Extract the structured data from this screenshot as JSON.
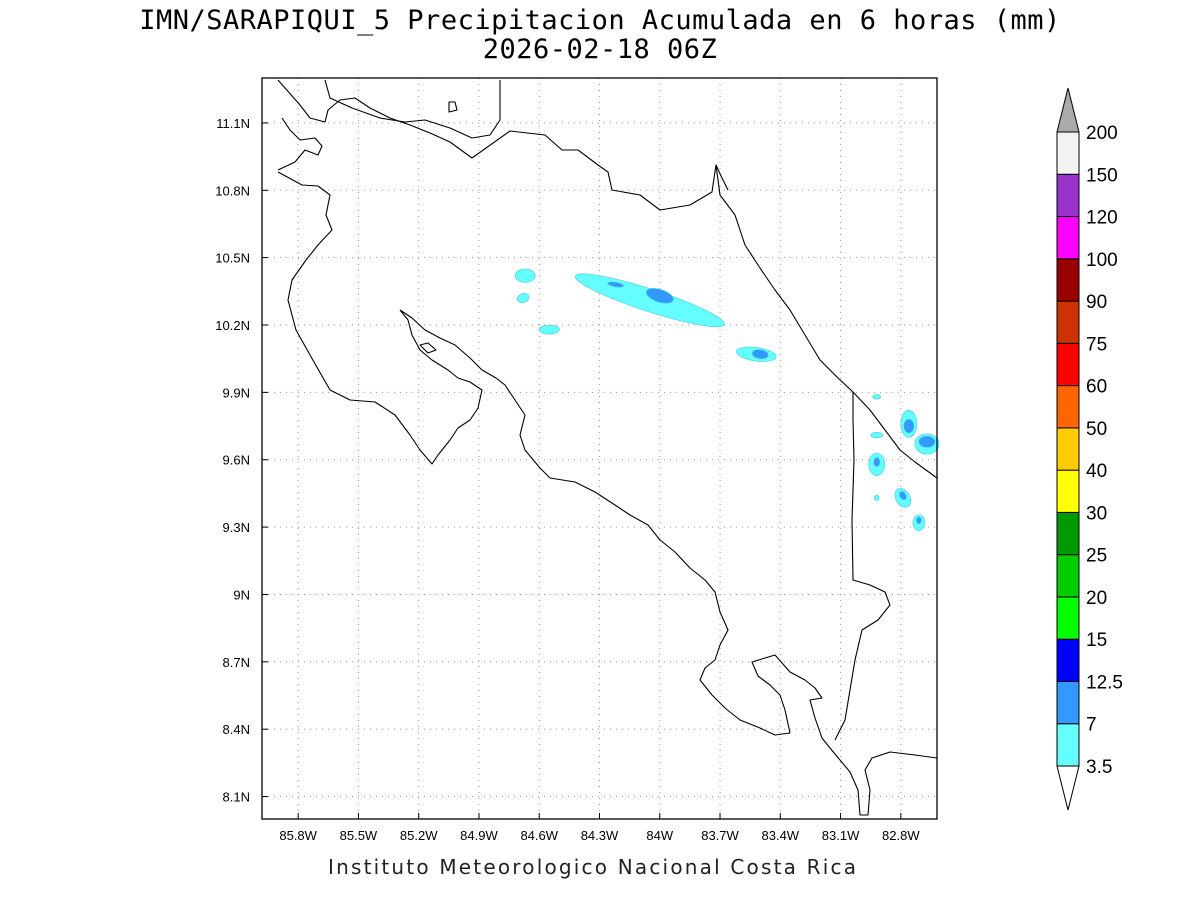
{
  "title_line1": "IMN/SARAPIQUI_5 Precipitacion Acumulada en 6 horas (mm)",
  "title_line2": "2026-02-18 06Z",
  "credit": "Instituto Meteorologico Nacional Costa Rica",
  "map_extent": {
    "lon": [
      -85.98,
      -82.62
    ],
    "lat": [
      8.0,
      11.3
    ]
  },
  "lon_ticks": [
    {
      "value": -85.8,
      "label": "85.8W"
    },
    {
      "value": -85.5,
      "label": "85.5W"
    },
    {
      "value": -85.2,
      "label": "85.2W"
    },
    {
      "value": -84.9,
      "label": "84.9W"
    },
    {
      "value": -84.6,
      "label": "84.6W"
    },
    {
      "value": -84.3,
      "label": "84.3W"
    },
    {
      "value": -84.0,
      "label": "84W"
    },
    {
      "value": -83.7,
      "label": "83.7W"
    },
    {
      "value": -83.4,
      "label": "83.4W"
    },
    {
      "value": -83.1,
      "label": "83.1W"
    },
    {
      "value": -82.8,
      "label": "82.8W"
    }
  ],
  "lat_ticks": [
    {
      "value": 11.1,
      "label": "11.1N"
    },
    {
      "value": 10.8,
      "label": "10.8N"
    },
    {
      "value": 10.5,
      "label": "10.5N"
    },
    {
      "value": 10.2,
      "label": "10.2N"
    },
    {
      "value": 9.9,
      "label": "9.9N"
    },
    {
      "value": 9.6,
      "label": "9.6N"
    },
    {
      "value": 9.3,
      "label": "9.3N"
    },
    {
      "value": 9.0,
      "label": "9N"
    },
    {
      "value": 8.7,
      "label": "8.7N"
    },
    {
      "value": 8.4,
      "label": "8.4N"
    },
    {
      "value": 8.1,
      "label": "8.1N"
    }
  ],
  "grid": "dotted",
  "colorbar": {
    "levels": [
      "3.5",
      "7",
      "12.5",
      "15",
      "20",
      "25",
      "30",
      "40",
      "50",
      "60",
      "75",
      "90",
      "100",
      "120",
      "150",
      "200"
    ],
    "colors": [
      "#66ffff",
      "#3399ff",
      "#0000ff",
      "#00ff00",
      "#00cc00",
      "#009900",
      "#ffff00",
      "#ffcc00",
      "#ff6600",
      "#ff0000",
      "#cc3300",
      "#990000",
      "#ff00ff",
      "#9933cc",
      "#f2f2f2"
    ],
    "over_color": "#aaaaaa",
    "under_color": "#ffffff"
  },
  "precip_areas": [
    {
      "level": "3.5",
      "lon": -84.67,
      "lat": 10.42,
      "rx": 0.05,
      "ry": 0.03,
      "rot": 0
    },
    {
      "level": "3.5",
      "lon": -84.68,
      "lat": 10.32,
      "rx": 0.03,
      "ry": 0.02,
      "rot": -20
    },
    {
      "level": "3.5",
      "lon": -84.55,
      "lat": 10.18,
      "rx": 0.05,
      "ry": 0.02,
      "rot": 0
    },
    {
      "level": "3.5",
      "lon": -84.05,
      "lat": 10.31,
      "rx": 0.39,
      "ry": 0.05,
      "rot": 18
    },
    {
      "level": "7",
      "lon": -84.0,
      "lat": 10.33,
      "rx": 0.07,
      "ry": 0.028,
      "rot": 18
    },
    {
      "level": "7",
      "lon": -84.22,
      "lat": 10.38,
      "rx": 0.04,
      "ry": 0.01,
      "rot": 10
    },
    {
      "level": "3.5",
      "lon": -83.52,
      "lat": 10.07,
      "rx": 0.1,
      "ry": 0.03,
      "rot": 8
    },
    {
      "level": "7",
      "lon": -83.5,
      "lat": 10.07,
      "rx": 0.04,
      "ry": 0.02,
      "rot": 8
    },
    {
      "level": "3.5",
      "lon": -82.92,
      "lat": 9.88,
      "rx": 0.02,
      "ry": 0.01,
      "rot": 0
    },
    {
      "level": "3.5",
      "lon": -82.92,
      "lat": 9.71,
      "rx": 0.03,
      "ry": 0.012,
      "rot": 0
    },
    {
      "level": "3.5",
      "lon": -82.76,
      "lat": 9.76,
      "rx": 0.04,
      "ry": 0.06,
      "rot": 0
    },
    {
      "level": "7",
      "lon": -82.76,
      "lat": 9.75,
      "rx": 0.025,
      "ry": 0.03,
      "rot": 0
    },
    {
      "level": "3.5",
      "lon": -82.67,
      "lat": 9.67,
      "rx": 0.06,
      "ry": 0.045,
      "rot": 0
    },
    {
      "level": "7",
      "lon": -82.67,
      "lat": 9.68,
      "rx": 0.04,
      "ry": 0.025,
      "rot": 0
    },
    {
      "level": "3.5",
      "lon": -82.92,
      "lat": 9.58,
      "rx": 0.04,
      "ry": 0.05,
      "rot": 0
    },
    {
      "level": "7",
      "lon": -82.92,
      "lat": 9.59,
      "rx": 0.015,
      "ry": 0.02,
      "rot": 0
    },
    {
      "level": "3.5",
      "lon": -82.92,
      "lat": 9.43,
      "rx": 0.012,
      "ry": 0.012,
      "rot": 0
    },
    {
      "level": "3.5",
      "lon": -82.79,
      "lat": 9.43,
      "rx": 0.035,
      "ry": 0.045,
      "rot": -30
    },
    {
      "level": "7",
      "lon": -82.79,
      "lat": 9.44,
      "rx": 0.015,
      "ry": 0.02,
      "rot": -30
    },
    {
      "level": "3.5",
      "lon": -82.71,
      "lat": 9.32,
      "rx": 0.03,
      "ry": 0.035,
      "rot": 0
    },
    {
      "level": "7",
      "lon": -82.71,
      "lat": 9.33,
      "rx": 0.012,
      "ry": 0.015,
      "rot": 0
    }
  ]
}
